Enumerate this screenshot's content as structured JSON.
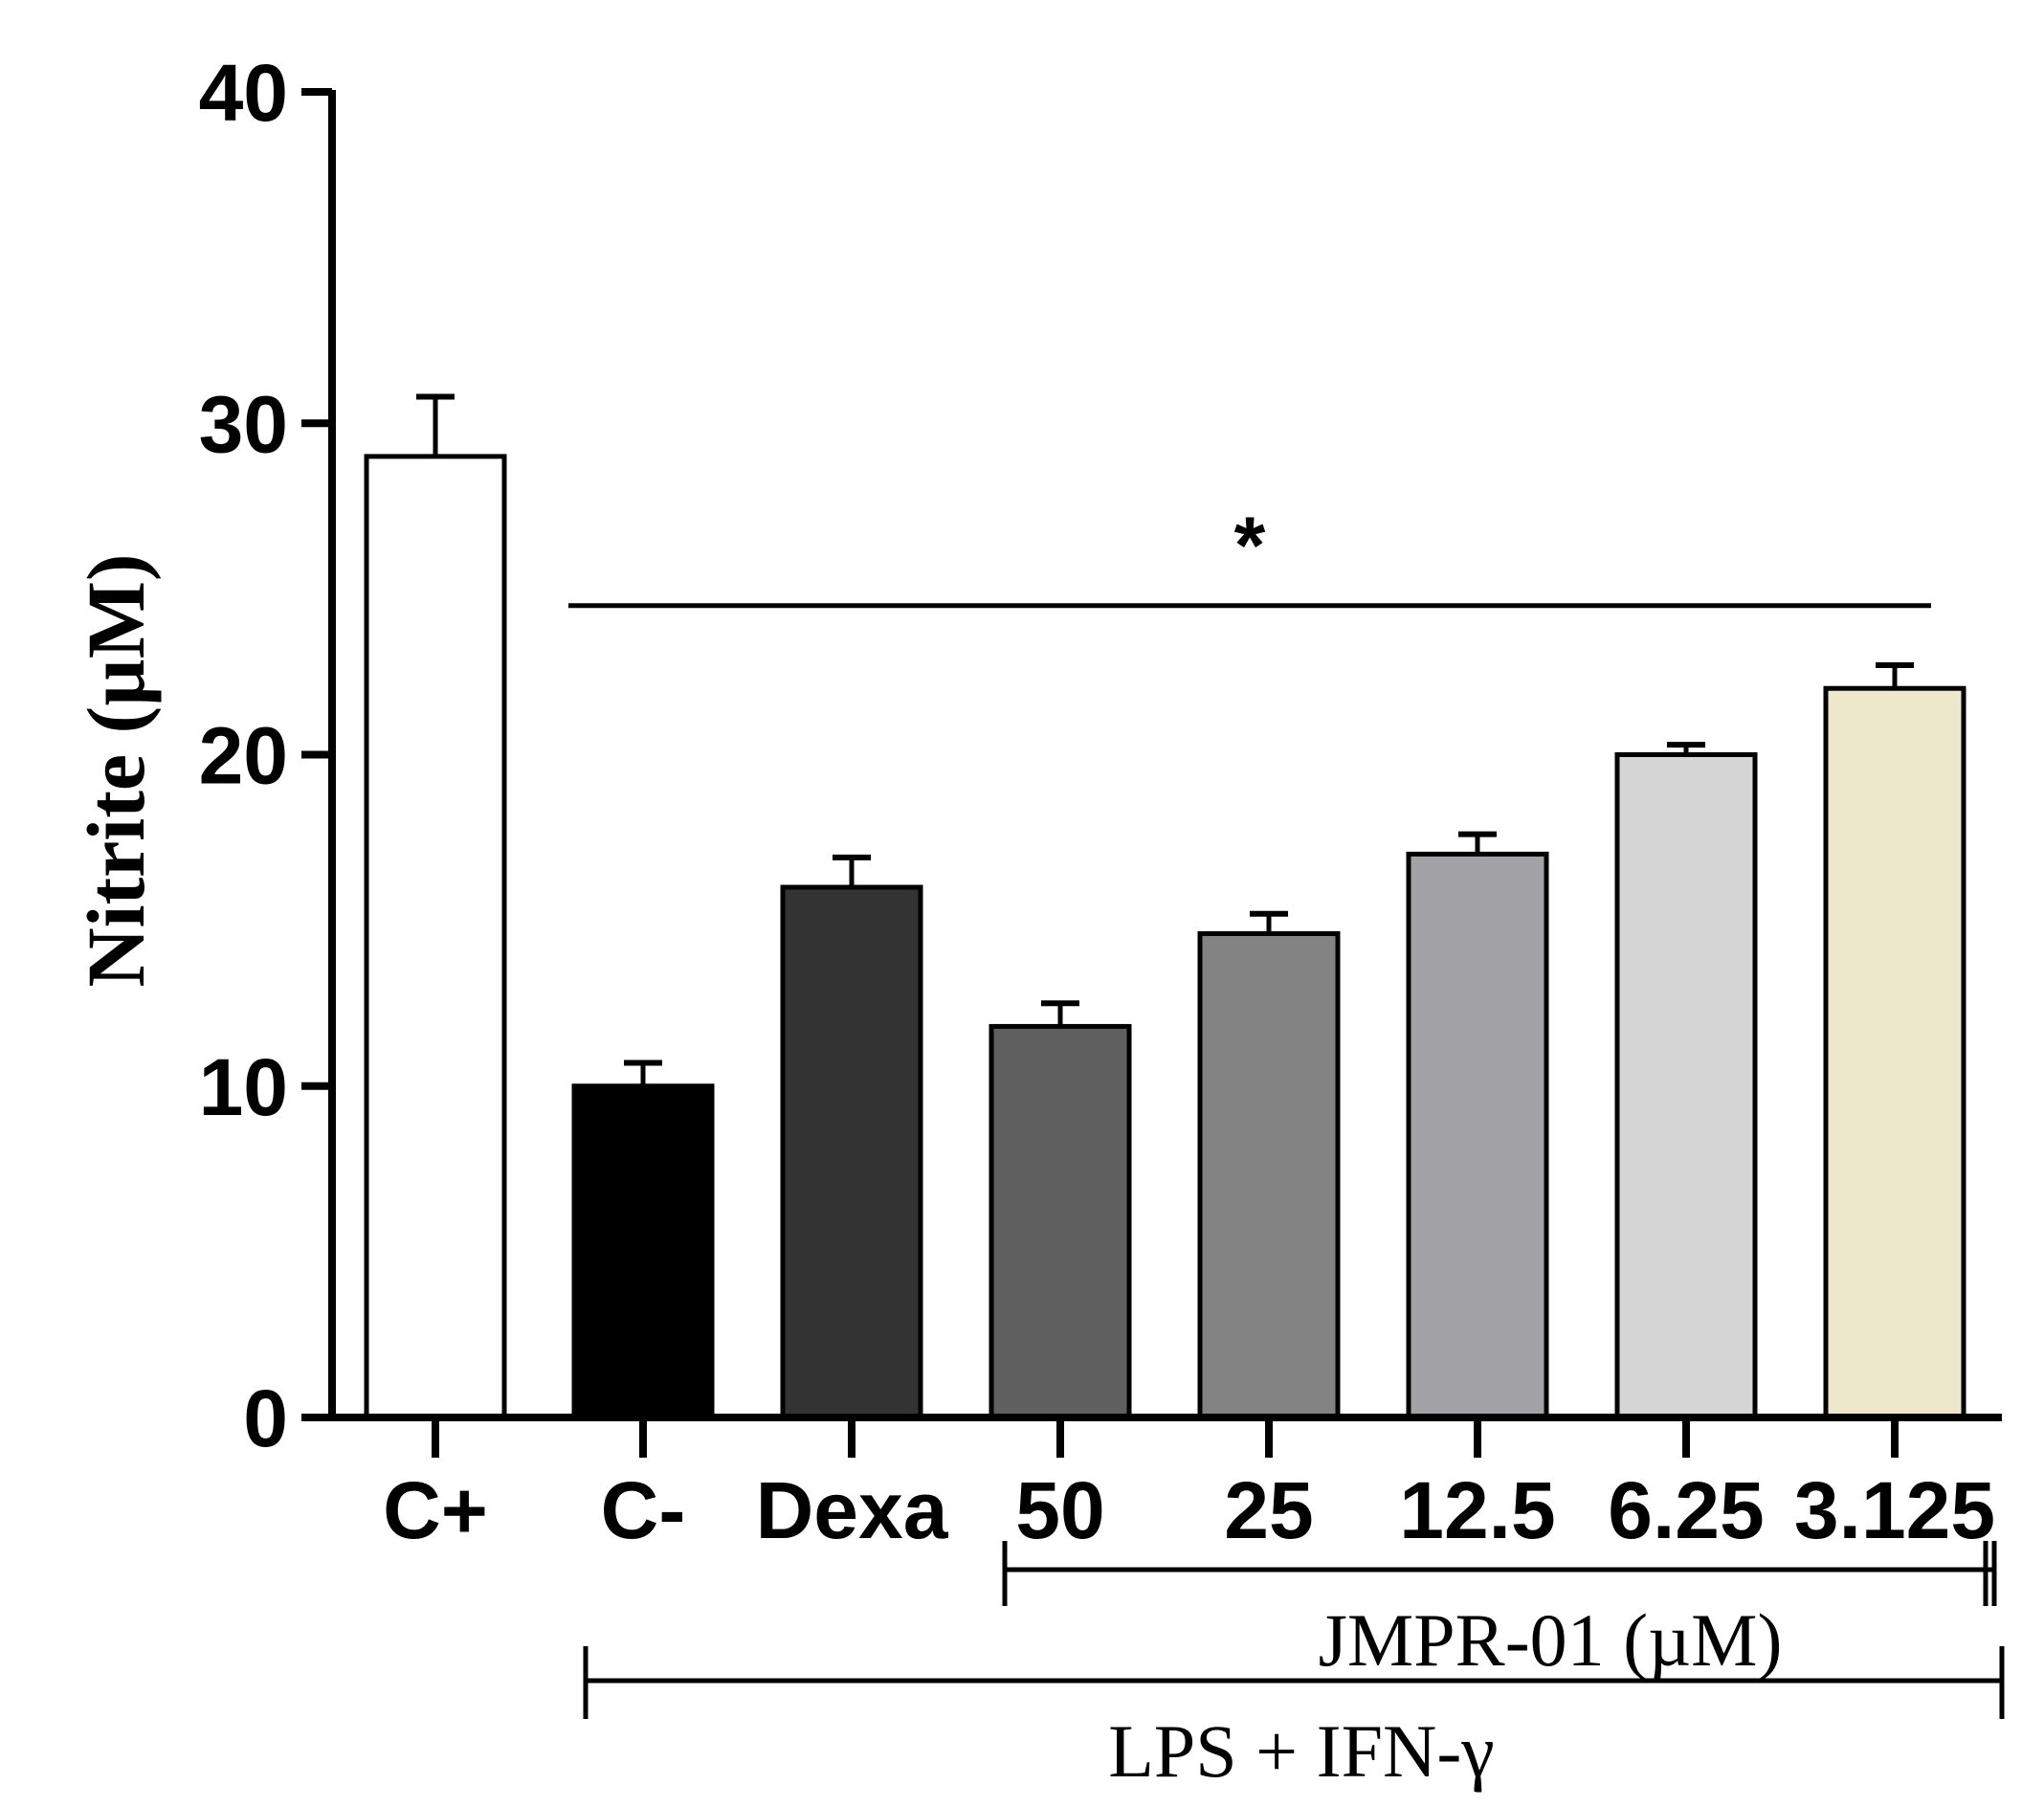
{
  "chart_data": {
    "type": "bar",
    "ylabel": "Nitrite (µM)",
    "xlabel": "",
    "ylim": [
      0,
      40
    ],
    "yticks": [
      0,
      10,
      20,
      30,
      40
    ],
    "categories": [
      "C+",
      "C-",
      "Dexa",
      "50",
      "25",
      "12.5",
      "6.25",
      "3.125"
    ],
    "values": [
      29,
      10,
      16,
      11.8,
      14.6,
      17,
      20,
      22
    ],
    "errors": [
      1.8,
      0.7,
      0.9,
      0.7,
      0.6,
      0.6,
      0.3,
      0.7
    ],
    "colors": [
      "#ffffff",
      "#000000",
      "#333333",
      "#5f5f5f",
      "#838383",
      "#a3a3a7",
      "#d6d6d6",
      "#ede7cb"
    ],
    "significance": {
      "label": "*",
      "y": 24.5
    },
    "groups": [
      {
        "label": "JMPR-01 (µM)",
        "from": "50",
        "to": "3.125"
      },
      {
        "label": "LPS  + IFN-γ",
        "from": "C-",
        "to": "3.125"
      }
    ]
  }
}
